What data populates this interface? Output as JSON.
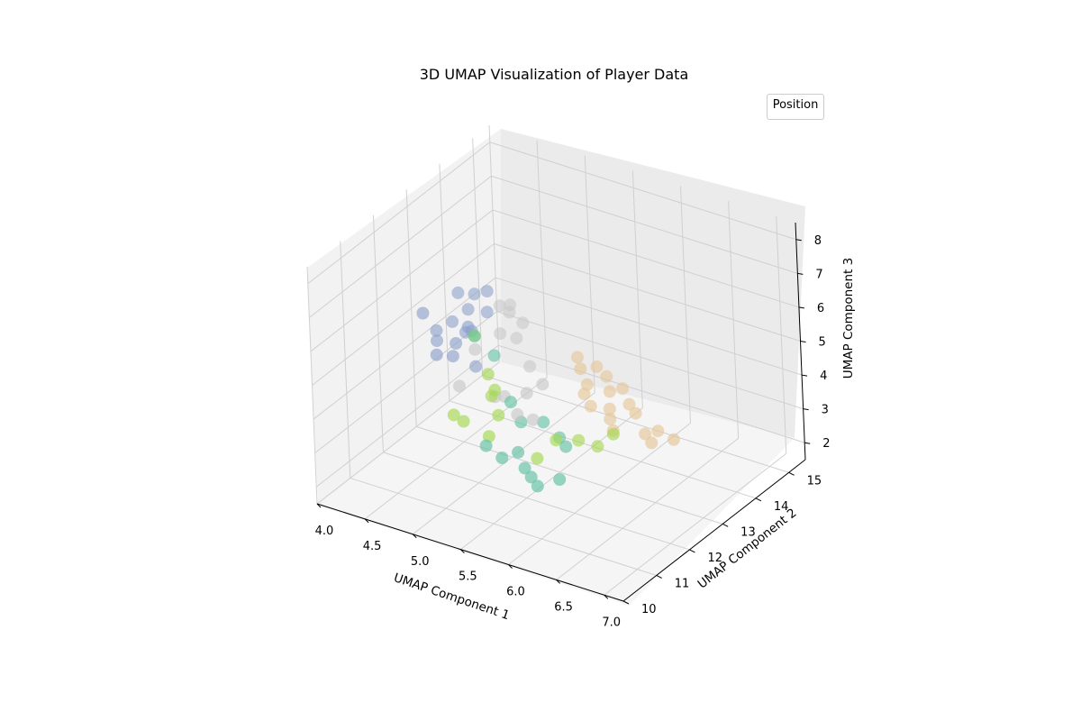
{
  "chart_data": {
    "type": "scatter",
    "title": "3D UMAP Visualization of Player Data",
    "xlabel": "UMAP Component 1",
    "ylabel": "UMAP Component 2",
    "zlabel": "UMAP Component 3",
    "xlim": [
      4.0,
      7.2
    ],
    "ylim": [
      10.0,
      15.5
    ],
    "zlim": [
      1.5,
      8.5
    ],
    "x_ticks": [
      "4.0",
      "4.5",
      "5.0",
      "5.5",
      "6.0",
      "6.5",
      "7.0"
    ],
    "y_ticks": [
      "10",
      "11",
      "12",
      "13",
      "14",
      "15"
    ],
    "z_ticks": [
      "2",
      "3",
      "4",
      "5",
      "6",
      "7",
      "8"
    ],
    "grid": true,
    "legend": {
      "title": "Position",
      "placement": "top-right"
    },
    "series": [
      {
        "color": "#8da0cb",
        "points": [
          [
            4.5,
            13.0,
            5.9
          ],
          [
            4.6,
            13.2,
            5.8
          ],
          [
            4.7,
            13.3,
            5.9
          ],
          [
            4.6,
            13.0,
            5.5
          ],
          [
            4.8,
            13.0,
            5.6
          ],
          [
            4.5,
            12.8,
            5.2
          ],
          [
            4.6,
            12.9,
            4.9
          ],
          [
            4.4,
            12.6,
            5.0
          ],
          [
            4.6,
            12.6,
            4.8
          ],
          [
            4.7,
            12.8,
            5.1
          ],
          [
            4.4,
            12.6,
            4.7
          ],
          [
            4.6,
            12.5,
            4.5
          ],
          [
            4.5,
            12.3,
            4.6
          ],
          [
            4.8,
            12.6,
            4.3
          ],
          [
            4.7,
            12.7,
            5.3
          ],
          [
            4.3,
            12.5,
            5.5
          ]
        ]
      },
      {
        "color": "#c8c8c8",
        "points": [
          [
            4.9,
            13.1,
            5.8
          ],
          [
            5.0,
            13.1,
            5.7
          ],
          [
            4.9,
            13.4,
            5.6
          ],
          [
            5.1,
            13.2,
            5.4
          ],
          [
            5.1,
            13.0,
            5.1
          ],
          [
            5.0,
            12.8,
            5.3
          ],
          [
            4.8,
            12.6,
            4.8
          ],
          [
            5.3,
            12.8,
            4.6
          ],
          [
            5.5,
            12.6,
            4.4
          ],
          [
            5.4,
            12.4,
            4.2
          ],
          [
            5.2,
            12.3,
            4.0
          ],
          [
            4.8,
            12.1,
            4.1
          ],
          [
            5.1,
            12.3,
            3.9
          ],
          [
            5.4,
            12.1,
            3.8
          ],
          [
            5.6,
            12.0,
            3.9
          ]
        ]
      },
      {
        "color": "#e5c494",
        "points": [
          [
            5.7,
            13.1,
            5.0
          ],
          [
            5.9,
            13.1,
            4.9
          ],
          [
            6.0,
            13.1,
            4.7
          ],
          [
            5.8,
            12.9,
            4.9
          ],
          [
            5.9,
            12.8,
            4.6
          ],
          [
            6.1,
            12.9,
            4.5
          ],
          [
            6.2,
            13.0,
            4.6
          ],
          [
            5.9,
            12.7,
            4.4
          ],
          [
            6.0,
            12.6,
            4.2
          ],
          [
            6.3,
            12.9,
            4.3
          ],
          [
            6.4,
            12.8,
            4.2
          ],
          [
            6.2,
            12.6,
            4.3
          ],
          [
            6.3,
            12.4,
            3.9
          ],
          [
            6.6,
            12.5,
            4.0
          ],
          [
            6.7,
            12.6,
            4.1
          ],
          [
            6.9,
            12.5,
            4.1
          ],
          [
            6.7,
            12.4,
            3.9
          ],
          [
            6.2,
            12.6,
            4.0
          ]
        ]
      },
      {
        "color": "#a6d854",
        "points": [
          [
            4.8,
            12.6,
            5.2
          ],
          [
            5.0,
            12.4,
            4.4
          ],
          [
            5.1,
            12.2,
            4.0
          ],
          [
            5.1,
            12.3,
            4.1
          ],
          [
            5.2,
            12.1,
            3.6
          ],
          [
            4.8,
            11.9,
            3.4
          ],
          [
            4.9,
            11.9,
            3.3
          ],
          [
            5.8,
            12.1,
            3.4
          ],
          [
            6.0,
            12.2,
            3.5
          ],
          [
            6.3,
            12.4,
            3.8
          ],
          [
            6.2,
            12.2,
            3.5
          ],
          [
            5.2,
            11.8,
            3.2
          ],
          [
            5.7,
            11.8,
            3.0
          ]
        ]
      },
      {
        "color": "#66c2a5",
        "points": [
          [
            5.0,
            12.6,
            4.8
          ],
          [
            4.8,
            12.6,
            5.2
          ],
          [
            5.3,
            12.2,
            4.0
          ],
          [
            5.4,
            12.2,
            3.5
          ],
          [
            5.6,
            12.3,
            3.6
          ],
          [
            5.8,
            12.2,
            3.4
          ],
          [
            5.9,
            12.1,
            3.3
          ],
          [
            5.2,
            11.7,
            3.0
          ],
          [
            5.4,
            11.6,
            2.9
          ],
          [
            5.6,
            11.7,
            2.7
          ],
          [
            5.7,
            11.6,
            2.6
          ],
          [
            5.8,
            11.5,
            2.5
          ],
          [
            6.0,
            11.6,
            2.8
          ],
          [
            5.5,
            11.8,
            3.0
          ]
        ]
      }
    ]
  }
}
